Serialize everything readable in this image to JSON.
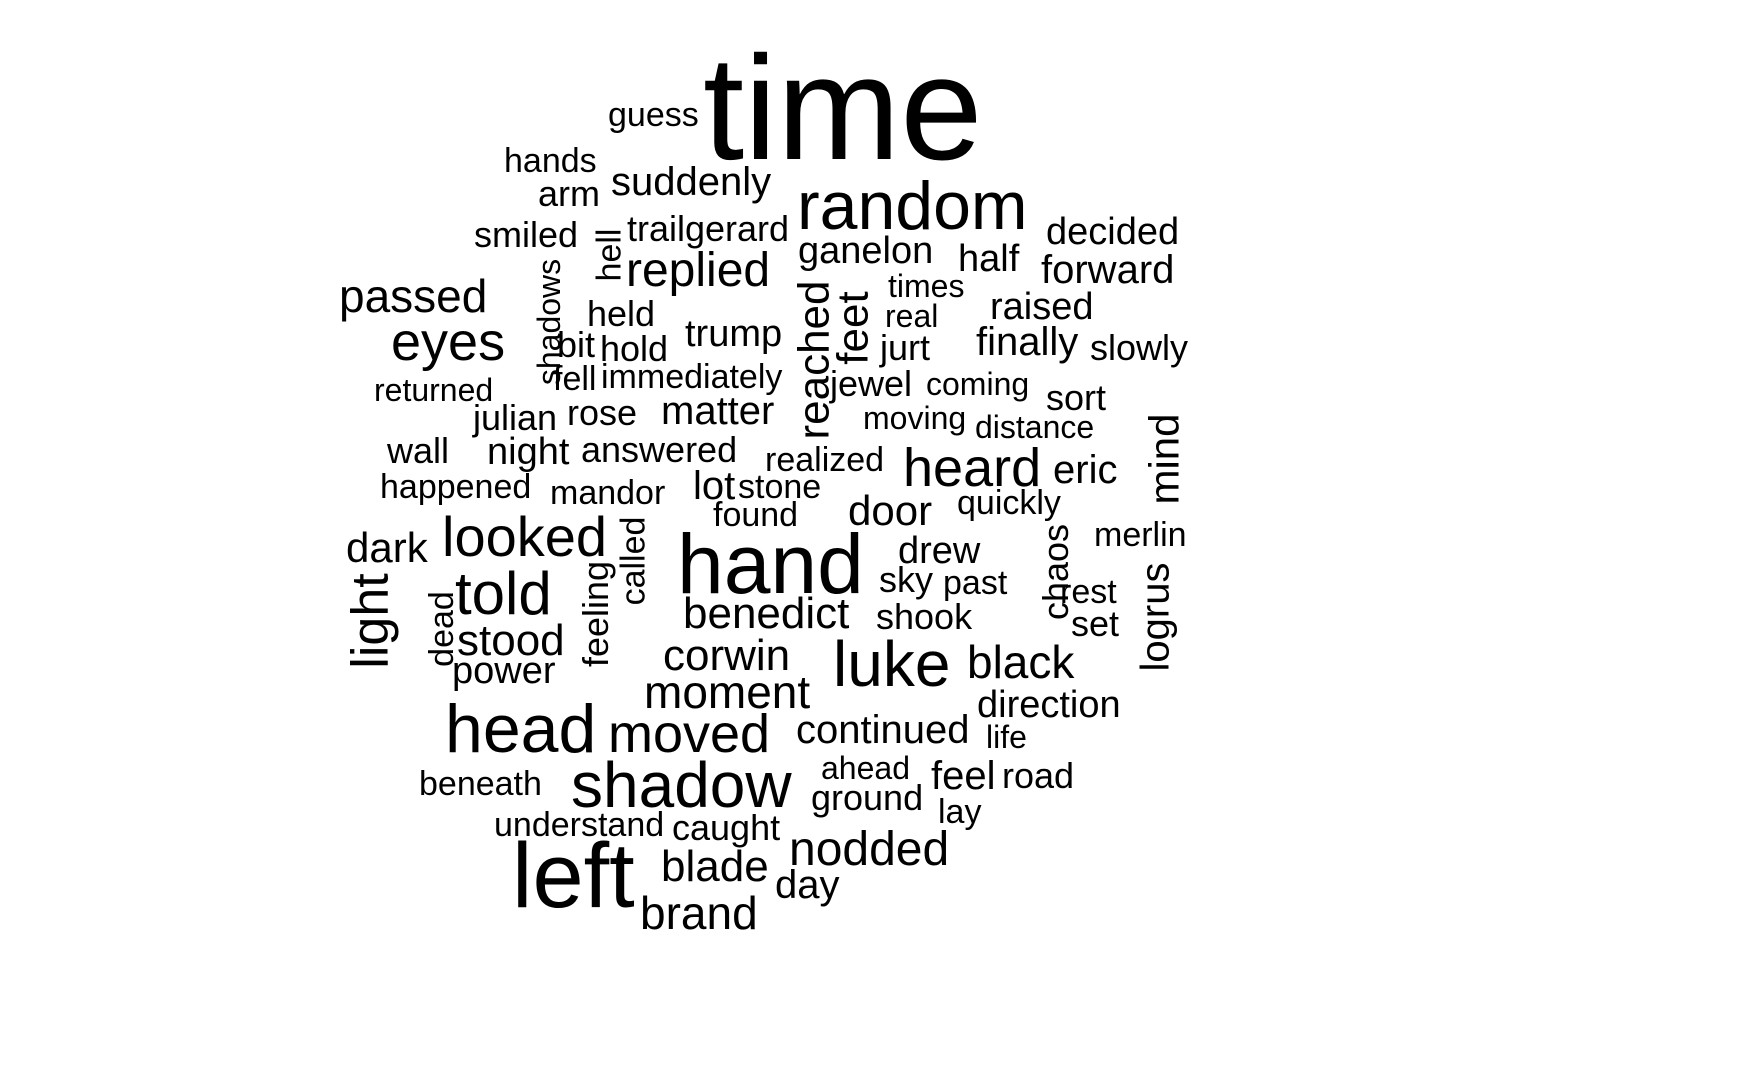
{
  "words": [
    {
      "text": "time"
    },
    {
      "text": "guess"
    },
    {
      "text": "hands"
    },
    {
      "text": "arm"
    },
    {
      "text": "suddenly"
    },
    {
      "text": "random"
    },
    {
      "text": "smiled"
    },
    {
      "text": "hell"
    },
    {
      "text": "trailgerard"
    },
    {
      "text": "ganelon"
    },
    {
      "text": "half"
    },
    {
      "text": "decided"
    },
    {
      "text": "forward"
    },
    {
      "text": "passed"
    },
    {
      "text": "replied"
    },
    {
      "text": "times"
    },
    {
      "text": "shadows"
    },
    {
      "text": "held"
    },
    {
      "text": "real"
    },
    {
      "text": "raised"
    },
    {
      "text": "eyes"
    },
    {
      "text": "bit"
    },
    {
      "text": "hold"
    },
    {
      "text": "trump"
    },
    {
      "text": "reached"
    },
    {
      "text": "feet"
    },
    {
      "text": "jurt"
    },
    {
      "text": "finally"
    },
    {
      "text": "slowly"
    },
    {
      "text": "returned"
    },
    {
      "text": "fell"
    },
    {
      "text": "immediately"
    },
    {
      "text": "jewel"
    },
    {
      "text": "coming"
    },
    {
      "text": "sort"
    },
    {
      "text": "julian"
    },
    {
      "text": "rose"
    },
    {
      "text": "matter"
    },
    {
      "text": "moving"
    },
    {
      "text": "distance"
    },
    {
      "text": "wall"
    },
    {
      "text": "night"
    },
    {
      "text": "answered"
    },
    {
      "text": "realized"
    },
    {
      "text": "heard"
    },
    {
      "text": "eric"
    },
    {
      "text": "mind"
    },
    {
      "text": "happened"
    },
    {
      "text": "mandor"
    },
    {
      "text": "lot"
    },
    {
      "text": "stone"
    },
    {
      "text": "found"
    },
    {
      "text": "door"
    },
    {
      "text": "quickly"
    },
    {
      "text": "dark"
    },
    {
      "text": "looked"
    },
    {
      "text": "called"
    },
    {
      "text": "hand"
    },
    {
      "text": "drew"
    },
    {
      "text": "chaos"
    },
    {
      "text": "merlin"
    },
    {
      "text": "light"
    },
    {
      "text": "told"
    },
    {
      "text": "feeling"
    },
    {
      "text": "sky"
    },
    {
      "text": "past"
    },
    {
      "text": "rest"
    },
    {
      "text": "logrus"
    },
    {
      "text": "dead"
    },
    {
      "text": "benedict"
    },
    {
      "text": "shook"
    },
    {
      "text": "set"
    },
    {
      "text": "stood"
    },
    {
      "text": "corwin"
    },
    {
      "text": "luke"
    },
    {
      "text": "black"
    },
    {
      "text": "power"
    },
    {
      "text": "moment"
    },
    {
      "text": "direction"
    },
    {
      "text": "head"
    },
    {
      "text": "moved"
    },
    {
      "text": "continued"
    },
    {
      "text": "life"
    },
    {
      "text": "ahead"
    },
    {
      "text": "beneath"
    },
    {
      "text": "shadow"
    },
    {
      "text": "feel"
    },
    {
      "text": "road"
    },
    {
      "text": "ground"
    },
    {
      "text": "lay"
    },
    {
      "text": "understand"
    },
    {
      "text": "caught"
    },
    {
      "text": "nodded"
    },
    {
      "text": "left"
    },
    {
      "text": "blade"
    },
    {
      "text": "day"
    },
    {
      "text": "brand"
    }
  ]
}
